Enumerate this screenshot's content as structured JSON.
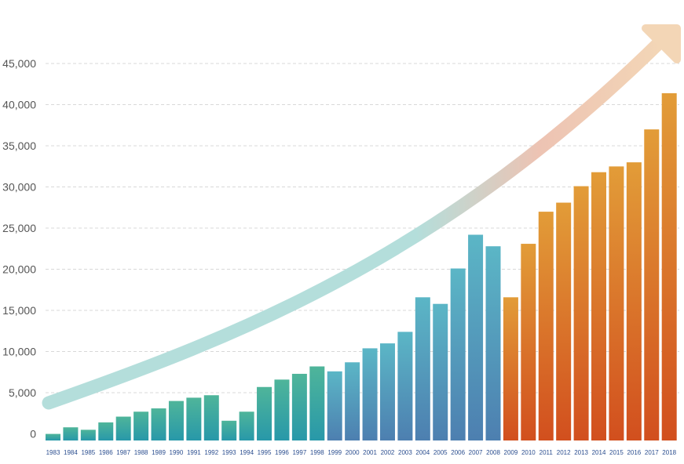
{
  "chart_data": {
    "type": "bar",
    "title": "",
    "xlabel": "",
    "ylabel": "",
    "ylim": [
      0,
      45000
    ],
    "yticks": [
      0,
      5000,
      10000,
      15000,
      20000,
      25000,
      30000,
      35000,
      40000,
      45000
    ],
    "ytick_labels": [
      "0",
      "5,000",
      "10,000",
      "15,000",
      "20,000",
      "25,000",
      "30,000",
      "35,000",
      "40,000",
      "45,000"
    ],
    "grid": true,
    "categories": [
      "1983",
      "1984",
      "1985",
      "1986",
      "1987",
      "1988",
      "1989",
      "1990",
      "1991",
      "1992",
      "1993",
      "1994",
      "1995",
      "1996",
      "1997",
      "1998",
      "1999",
      "2000",
      "2001",
      "2002",
      "2003",
      "2004",
      "2005",
      "2006",
      "2007",
      "2008",
      "2009",
      "2010",
      "2011",
      "2012",
      "2013",
      "2014",
      "2015",
      "2016",
      "2017",
      "2018"
    ],
    "values": [
      800,
      1600,
      1300,
      2200,
      2900,
      3500,
      3900,
      4800,
      5200,
      5500,
      2400,
      3500,
      6500,
      7400,
      8100,
      9000,
      8400,
      9500,
      11200,
      11800,
      13200,
      17400,
      16600,
      20900,
      25000,
      23600,
      17400,
      23900,
      27800,
      28900,
      30900,
      32600,
      33300,
      33800,
      37800,
      42200
    ],
    "annotation": "trend arrow (upward)",
    "colors": {
      "teal_top": "#4fb59a",
      "teal_bottom": "#2898a9",
      "blue_top": "#5bb6c6",
      "blue_bottom": "#4d7fb0",
      "orange_top": "#e29c38",
      "orange_bottom": "#d24f1e",
      "axis_text": "#555555",
      "year_text": "#2b4e8f",
      "arrow_start": "#b4dedb",
      "arrow_end": "#f3d6b6"
    }
  }
}
